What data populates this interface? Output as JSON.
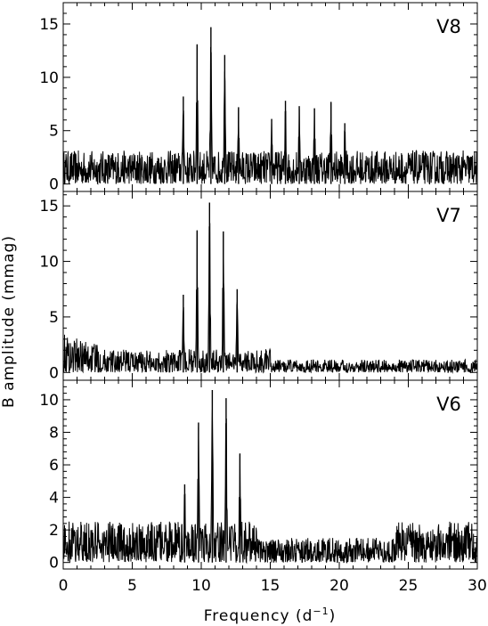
{
  "figure": {
    "ylabel": "B amplitude (mmag)",
    "xlabel_main": "Frequency (d",
    "xlabel_sup": "−1",
    "xlabel_tail": ")",
    "x_ticks": [
      "0",
      "5",
      "10",
      "15",
      "20",
      "25",
      "30"
    ]
  },
  "chart_data": [
    {
      "type": "line",
      "label": "V8",
      "xlim": [
        0,
        30
      ],
      "ylim": [
        -0.7,
        17
      ],
      "y_ticks": [
        0,
        5,
        10,
        15
      ],
      "noise_level": 1.5,
      "peaks": {
        "x": [
          8.7,
          9.7,
          10.7,
          11.7,
          12.7,
          15.1,
          16.1,
          17.1,
          18.2,
          19.4,
          20.4
        ],
        "y": [
          8.2,
          13.1,
          14.7,
          12.1,
          7.2,
          6.1,
          7.8,
          7.3,
          7.1,
          7.7,
          5.7
        ]
      }
    },
    {
      "type": "line",
      "label": "V7",
      "xlim": [
        0,
        30
      ],
      "ylim": [
        -0.7,
        16.3
      ],
      "y_ticks": [
        0,
        5,
        10,
        15
      ],
      "noise_level": 1.0,
      "peaks": {
        "x": [
          8.7,
          9.7,
          10.6,
          11.6,
          12.6
        ],
        "y": [
          7.0,
          12.8,
          15.3,
          12.7,
          7.5
        ]
      }
    },
    {
      "type": "line",
      "label": "V6",
      "xlim": [
        0,
        30
      ],
      "ylim": [
        -0.4,
        11.2
      ],
      "y_ticks": [
        0,
        2,
        4,
        6,
        8,
        10
      ],
      "noise_level": 1.2,
      "peaks": {
        "x": [
          8.8,
          9.8,
          10.8,
          11.8,
          12.8
        ],
        "y": [
          4.8,
          8.6,
          10.6,
          10.1,
          6.7
        ]
      }
    }
  ]
}
